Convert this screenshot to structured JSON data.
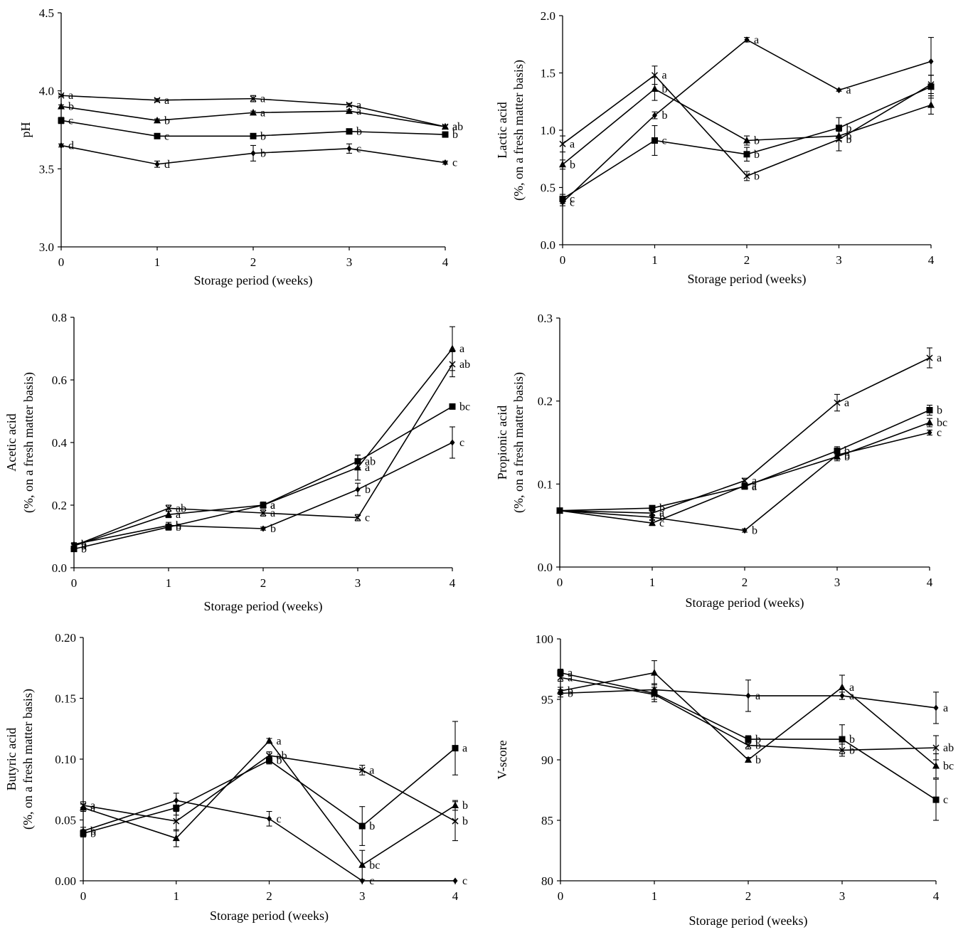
{
  "chart_data": [
    {
      "type": "line",
      "panel": "top-left",
      "xlabel": "Storage period (weeks)",
      "ylabel": "pH",
      "ylabel2": "",
      "x": [
        0,
        1,
        2,
        3,
        4
      ],
      "xlim": [
        0,
        4
      ],
      "ylim": [
        3.0,
        4.5
      ],
      "yticks": [
        "3.0",
        "3.5",
        "4.0",
        "4.5"
      ],
      "series": [
        {
          "marker": "x",
          "values": [
            3.97,
            3.94,
            3.95,
            3.91,
            3.77
          ],
          "err": [
            0.005,
            0.01,
            0.02,
            0.01,
            0.01
          ],
          "labels": [
            "a",
            "a",
            "a",
            "a",
            "a"
          ]
        },
        {
          "marker": "triangle",
          "values": [
            3.9,
            3.81,
            3.86,
            3.87,
            3.77
          ],
          "err": [
            0.01,
            0.01,
            0.01,
            0.01,
            0.01
          ],
          "labels": [
            "b",
            "b",
            "a",
            "a",
            "ab"
          ]
        },
        {
          "marker": "square",
          "values": [
            3.81,
            3.71,
            3.71,
            3.74,
            3.72
          ],
          "err": [
            0.02,
            0.01,
            0.01,
            0.01,
            0.01
          ],
          "labels": [
            "c",
            "c",
            "b",
            "b",
            "b"
          ]
        },
        {
          "marker": "diamond",
          "values": [
            3.65,
            3.53,
            3.6,
            3.63,
            3.54
          ],
          "err": [
            0.01,
            0.02,
            0.05,
            0.03,
            0.01
          ],
          "labels": [
            "d",
            "d",
            "b",
            "c",
            "c"
          ]
        }
      ]
    },
    {
      "type": "line",
      "panel": "top-right",
      "xlabel": "Storage period (weeks)",
      "ylabel": "Lactic acid",
      "ylabel2": "(%, on a fresh matter basis)",
      "x": [
        0,
        1,
        2,
        3,
        4
      ],
      "xlim": [
        0,
        4
      ],
      "ylim": [
        0.0,
        2.0
      ],
      "yticks": [
        "0.0",
        "0.5",
        "1.0",
        "1.5",
        "2.0"
      ],
      "series": [
        {
          "marker": "diamond",
          "values": [
            0.37,
            1.13,
            1.79,
            1.35,
            1.6
          ],
          "err": [
            0.03,
            0.03,
            0.02,
            0.01,
            0.21
          ],
          "labels": [
            "c",
            "b",
            "a",
            "a",
            ""
          ]
        },
        {
          "marker": "x",
          "values": [
            0.88,
            1.48,
            0.6,
            0.92,
            1.4
          ],
          "err": [
            0.07,
            0.08,
            0.04,
            0.1,
            0.08
          ],
          "labels": [
            "a",
            "a",
            "b",
            "b",
            ""
          ]
        },
        {
          "marker": "triangle",
          "values": [
            0.7,
            1.36,
            0.91,
            0.95,
            1.22
          ],
          "err": [
            0.04,
            0.1,
            0.04,
            0.04,
            0.08
          ],
          "labels": [
            "b",
            "b",
            "b",
            "b",
            ""
          ]
        },
        {
          "marker": "square",
          "values": [
            0.4,
            0.91,
            0.79,
            1.02,
            1.38
          ],
          "err": [
            0.04,
            0.13,
            0.06,
            0.09,
            0.1
          ],
          "labels": [
            "c",
            "c",
            "b",
            "b",
            ""
          ]
        }
      ]
    },
    {
      "type": "line",
      "panel": "middle-left",
      "xlabel": "Storage period (weeks)",
      "ylabel": "Acetic acid",
      "ylabel2": "(%, on a fresh matter basis)",
      "x": [
        0,
        1,
        2,
        3,
        4
      ],
      "xlim": [
        0,
        4
      ],
      "ylim": [
        0.0,
        0.8
      ],
      "yticks": [
        "0.0",
        "0.2",
        "0.4",
        "0.6",
        "0.8"
      ],
      "series": [
        {
          "marker": "triangle",
          "values": [
            0.07,
            0.17,
            0.2,
            0.32,
            0.7
          ],
          "err": [
            0.005,
            0.01,
            0.01,
            0.04,
            0.07
          ],
          "labels": [
            "a",
            "a",
            "a",
            "a",
            "a"
          ]
        },
        {
          "marker": "x",
          "values": [
            0.07,
            0.19,
            0.175,
            0.16,
            0.65
          ],
          "err": [
            0.005,
            0.01,
            0.01,
            0.01,
            0.04
          ],
          "labels": [
            "b",
            "ab",
            "a",
            "c",
            "ab"
          ]
        },
        {
          "marker": "square",
          "values": [
            0.06,
            0.13,
            0.2,
            0.34,
            0.515
          ],
          "err": [
            0.005,
            0.01,
            0.01,
            0.02,
            0.005
          ],
          "labels": [
            "b",
            "b",
            "a",
            "ab",
            "bc"
          ]
        },
        {
          "marker": "diamond",
          "values": [
            0.075,
            0.135,
            0.125,
            0.25,
            0.4
          ],
          "err": [
            0.005,
            0.01,
            0.005,
            0.02,
            0.05
          ],
          "labels": [
            "b",
            "b",
            "b",
            "b",
            "c"
          ]
        }
      ]
    },
    {
      "type": "line",
      "panel": "middle-right",
      "xlabel": "Storage period (weeks)",
      "ylabel": "Propionic acid",
      "ylabel2": "(%, on a fresh matter basis)",
      "x": [
        0,
        1,
        2,
        3,
        4
      ],
      "xlim": [
        0,
        4
      ],
      "ylim": [
        0.0,
        0.3
      ],
      "yticks": [
        "0.0",
        "0.1",
        "0.2",
        "0.3"
      ],
      "series": [
        {
          "marker": "x",
          "values": [
            0.068,
            0.065,
            0.104,
            0.198,
            0.252
          ],
          "err": [
            0.002,
            0.003,
            0.003,
            0.01,
            0.012
          ],
          "labels": [
            "",
            "a",
            "a",
            "a",
            "a"
          ]
        },
        {
          "marker": "square",
          "values": [
            0.068,
            0.071,
            0.097,
            0.14,
            0.189
          ],
          "err": [
            0.002,
            0.003,
            0.003,
            0.005,
            0.006
          ],
          "labels": [
            "",
            "b",
            "a",
            "b",
            "b"
          ]
        },
        {
          "marker": "triangle",
          "values": [
            0.068,
            0.053,
            0.098,
            0.133,
            0.174
          ],
          "err": [
            0.002,
            0.003,
            0.003,
            0.005,
            0.005
          ],
          "labels": [
            "",
            "c",
            "a",
            "b",
            "bc"
          ]
        },
        {
          "marker": "diamond",
          "values": [
            0.068,
            0.06,
            0.044,
            0.135,
            0.162
          ],
          "err": [
            0.002,
            0.003,
            0.002,
            0.005,
            0.003
          ],
          "labels": [
            "",
            "b",
            "b",
            "b",
            "c"
          ]
        }
      ]
    },
    {
      "type": "line",
      "panel": "bottom-left",
      "xlabel": "Storage period (weeks)",
      "ylabel": "Butyric acid",
      "ylabel2": "(%, on a fresh matter basis)",
      "x": [
        0,
        1,
        2,
        3,
        4
      ],
      "xlim": [
        0,
        4
      ],
      "ylim": [
        0.0,
        0.2
      ],
      "yticks": [
        "0.00",
        "0.05",
        "0.10",
        "0.15",
        "0.20"
      ],
      "series": [
        {
          "marker": "triangle",
          "values": [
            0.06,
            0.035,
            0.115,
            0.013,
            0.062
          ],
          "err": [
            0.003,
            0.007,
            0.002,
            0.012,
            0.004
          ],
          "labels": [
            "a",
            "",
            "a",
            "bc",
            "b"
          ]
        },
        {
          "marker": "x",
          "values": [
            0.062,
            0.049,
            0.103,
            0.091,
            0.049
          ],
          "err": [
            0.003,
            0.008,
            0.003,
            0.004,
            0.016
          ],
          "labels": [
            "a",
            "",
            "ab",
            "a",
            "b"
          ]
        },
        {
          "marker": "square",
          "values": [
            0.039,
            0.06,
            0.099,
            0.045,
            0.109
          ],
          "err": [
            0.003,
            0.006,
            0.003,
            0.016,
            0.022
          ],
          "labels": [
            "b",
            "",
            "b",
            "b",
            "a"
          ]
        },
        {
          "marker": "diamond",
          "values": [
            0.041,
            0.066,
            0.051,
            0.0,
            0.0
          ],
          "err": [
            0.003,
            0.006,
            0.006,
            0.0,
            0.0
          ],
          "labels": [
            "b",
            "",
            "c",
            "c",
            "c"
          ]
        }
      ]
    },
    {
      "type": "line",
      "panel": "bottom-right",
      "xlabel": "Storage period (weeks)",
      "ylabel": "V-score",
      "ylabel2": "",
      "x": [
        0,
        1,
        2,
        3,
        4
      ],
      "xlim": [
        0,
        4
      ],
      "ylim": [
        80,
        100
      ],
      "yticks": [
        "80",
        "85",
        "90",
        "95",
        "100"
      ],
      "series": [
        {
          "marker": "square",
          "values": [
            97.2,
            95.5,
            91.7,
            91.7,
            86.7
          ],
          "err": [
            0.3,
            0.5,
            0.3,
            1.2,
            1.7
          ],
          "labels": [
            "a",
            "",
            "b",
            "b",
            "c"
          ]
        },
        {
          "marker": "triangle",
          "values": [
            95.7,
            97.2,
            90.0,
            96.0,
            89.5
          ],
          "err": [
            0.3,
            1.0,
            0.2,
            1.0,
            1.0
          ],
          "labels": [
            "b",
            "",
            "b",
            "a",
            "bc"
          ]
        },
        {
          "marker": "x",
          "values": [
            96.8,
            95.4,
            91.2,
            90.8,
            91.0
          ],
          "err": [
            0.3,
            0.6,
            0.3,
            0.5,
            1.0
          ],
          "labels": [
            "a",
            "",
            "b",
            "b",
            "ab"
          ]
        },
        {
          "marker": "diamond",
          "values": [
            95.5,
            95.8,
            95.3,
            95.3,
            94.3
          ],
          "err": [
            0.3,
            0.5,
            1.3,
            0.3,
            1.3
          ],
          "labels": [
            "b",
            "",
            "a",
            "a",
            "a"
          ]
        }
      ]
    }
  ]
}
